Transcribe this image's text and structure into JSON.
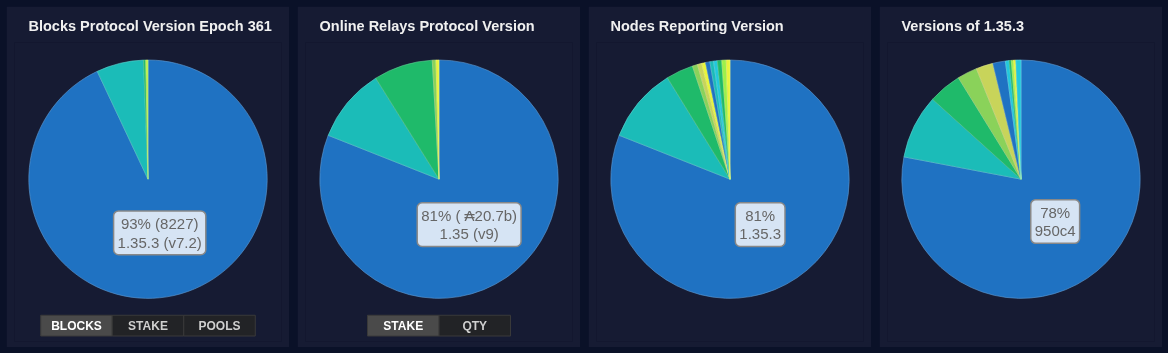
{
  "chart_data": [
    {
      "type": "pie",
      "title": "Blocks Protocol Version Epoch 361",
      "categories": [
        "1.35.3 (v7.2)",
        null,
        null,
        null
      ],
      "values": [
        93,
        6.4,
        0.3,
        0.3
      ],
      "colors": [
        "#1f72c2",
        "#1bbcb8",
        "#1fba6a",
        "#b6f04a"
      ],
      "value_labels": [
        "93% (8227)",
        null,
        null,
        null
      ],
      "annotations": [
        "BLOCKS",
        "STAKE",
        "POOLS"
      ],
      "legend": false
    },
    {
      "type": "pie",
      "title": "Online Relays Protocol Version",
      "categories": [
        "1.35 (v9)",
        null,
        null,
        null,
        null
      ],
      "values": [
        81,
        10.1,
        8.0,
        0.5,
        0.4
      ],
      "colors": [
        "#1f72c2",
        "#1bbcb8",
        "#1fba6a",
        "#8ad25a",
        "#e8f53a"
      ],
      "value_labels": [
        "81% ( ₳20.7b)",
        null,
        null,
        null,
        null
      ],
      "annotations": [
        "STAKE",
        "QTY"
      ],
      "legend": false
    },
    {
      "type": "pie",
      "title": "Nodes Reporting Version",
      "categories": [
        "1.35.3",
        null,
        null,
        null,
        null,
        null,
        null,
        null,
        null,
        null,
        null,
        null
      ],
      "values": [
        81,
        10.2,
        3.7,
        0.7,
        0.6,
        0.5,
        0.6,
        0.5,
        0.5,
        0.6,
        0.6,
        0.5
      ],
      "colors": [
        "#1f72c2",
        "#1bbcb8",
        "#1fba6a",
        "#8ad25a",
        "#c8d45a",
        "#e8f53a",
        "#1f72c2",
        "#1bbcb8",
        "#22c8dc",
        "#1fba6a",
        "#9ef04a",
        "#e8f53a"
      ],
      "value_labels": [
        "81%",
        null,
        null,
        null,
        null,
        null,
        null,
        null,
        null,
        null,
        null,
        null
      ],
      "legend": false
    },
    {
      "type": "pie",
      "title": "Versions of 1.35.3",
      "categories": [
        "950c4",
        null,
        null,
        null,
        null,
        null,
        null,
        null,
        null,
        null,
        null
      ],
      "values": [
        78,
        8.7,
        4.5,
        2.7,
        2.3,
        1.7,
        0.5,
        0.3,
        0.3,
        0.3,
        0.7
      ],
      "colors": [
        "#1f72c2",
        "#1bbcb8",
        "#1fba6a",
        "#8ad25a",
        "#c8d45a",
        "#1f72c2",
        "#22c8dc",
        "#1fba6a",
        "#9ef04a",
        "#e8f53a",
        "#22c8dc"
      ],
      "value_labels": [
        "78%",
        null,
        null,
        null,
        null,
        null,
        null,
        null,
        null,
        null,
        null
      ],
      "legend": false
    }
  ]
}
